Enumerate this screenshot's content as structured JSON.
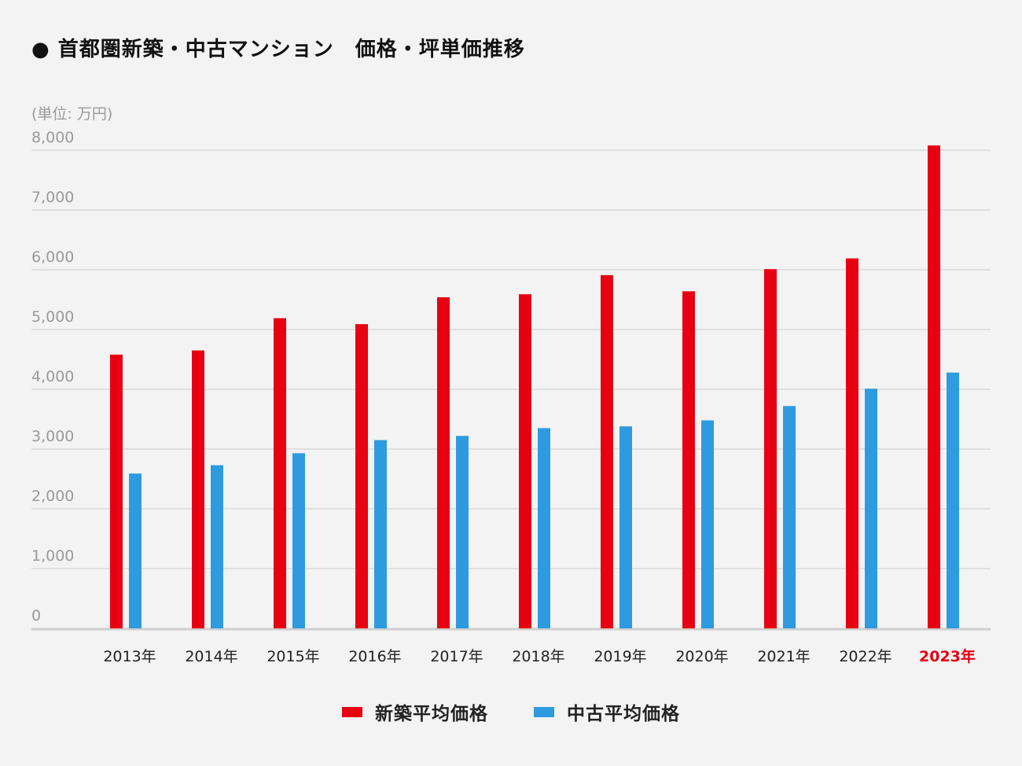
{
  "title": "● 首都圏新築・中古マンション　価格・坪単価推移",
  "unit_label": "(単位: 万円)",
  "colors": {
    "new": "#e60012",
    "used": "#2e9be0",
    "highlight": "#e60012",
    "grid": "#d9d9d9",
    "axis_text": "#9a9a9a"
  },
  "chart_data": {
    "type": "bar",
    "categories": [
      "2013年",
      "2014年",
      "2015年",
      "2016年",
      "2017年",
      "2018年",
      "2019年",
      "2020年",
      "2021年",
      "2022年",
      "2023年"
    ],
    "highlight_category": "2023年",
    "series": [
      {
        "name": "新築平均価格",
        "values": [
          4580,
          4650,
          5190,
          5090,
          5540,
          5590,
          5910,
          5640,
          6010,
          6190,
          8080
        ]
      },
      {
        "name": "中古平均価格",
        "values": [
          2590,
          2730,
          2930,
          3150,
          3220,
          3350,
          3380,
          3480,
          3720,
          4010,
          4280
        ]
      }
    ],
    "ylim": [
      0,
      8000
    ],
    "yticks": [
      "0",
      "1,000",
      "2,000",
      "3,000",
      "4,000",
      "5,000",
      "6,000",
      "7,000",
      "8,000"
    ],
    "ytick_values": [
      0,
      1000,
      2000,
      3000,
      4000,
      5000,
      6000,
      7000,
      8000
    ],
    "legend_position": "bottom-center"
  }
}
